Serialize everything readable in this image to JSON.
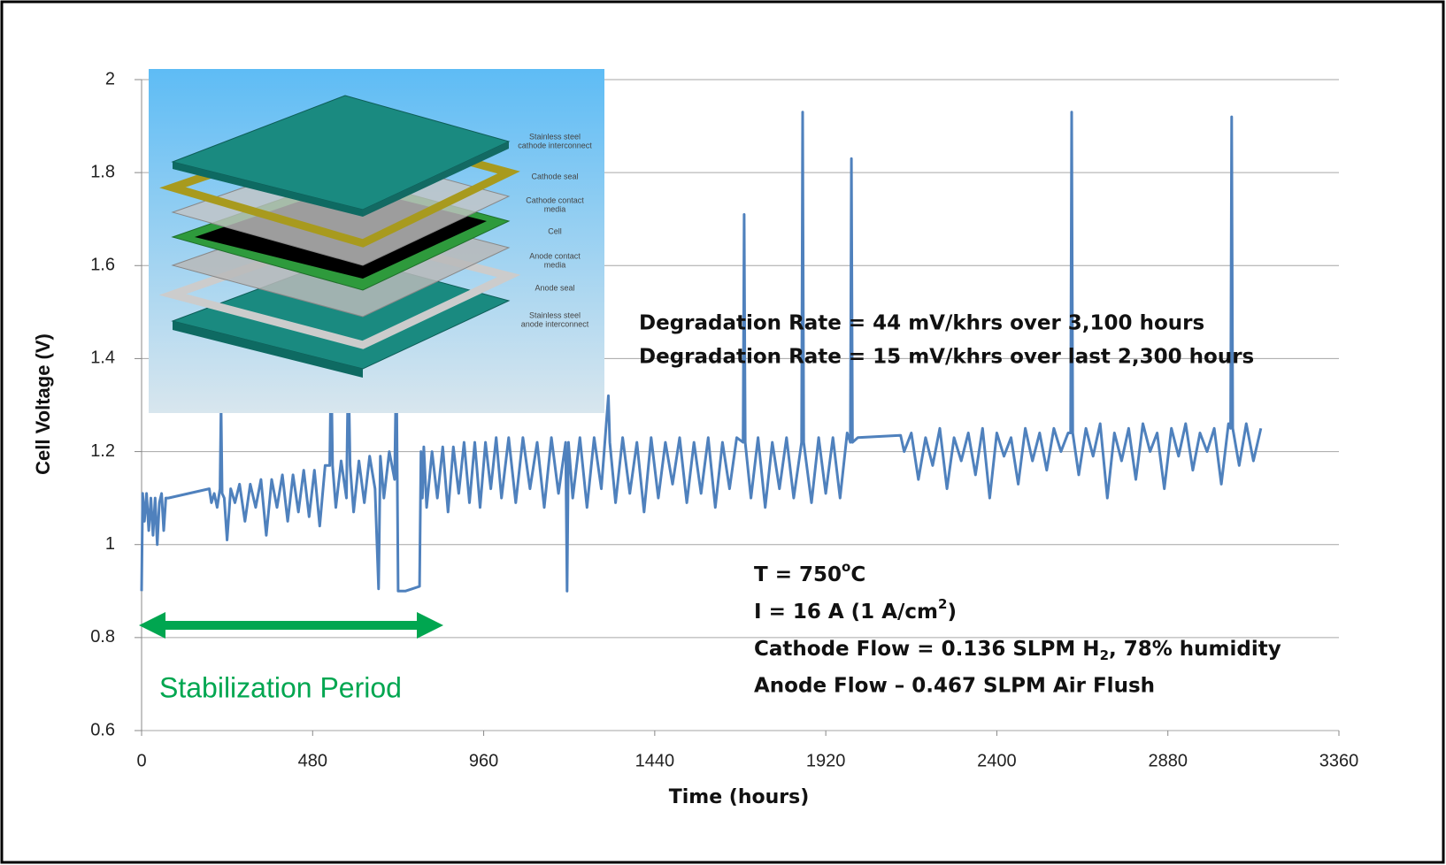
{
  "chart_data": {
    "type": "line",
    "x_label": "Time (hours)",
    "y_label": "Cell Voltage (V)",
    "xlim": [
      0,
      3360
    ],
    "xticks": [
      0,
      480,
      960,
      1440,
      1920,
      2400,
      2880,
      3360
    ],
    "ylim": [
      0.6,
      2
    ],
    "yticks": [
      0.6,
      0.8,
      1,
      1.2,
      1.4,
      1.6,
      1.8,
      2
    ],
    "grid": true,
    "series": [
      {
        "color": "#4f81bd",
        "x": [
          0,
          3,
          8,
          14,
          20,
          26,
          32,
          38,
          44,
          50,
          56,
          62,
          68,
          75,
          190,
          196,
          204,
          212,
          220,
          223,
          226,
          232,
          240,
          250,
          262,
          275,
          290,
          305,
          320,
          335,
          350,
          365,
          380,
          395,
          410,
          425,
          440,
          455,
          470,
          485,
          500,
          515,
          528,
          532,
          536,
          545,
          560,
          575,
          580,
          585,
          595,
          610,
          625,
          640,
          655,
          665,
          670,
          680,
          695,
          710,
          715,
          720,
          740,
          760,
          780,
          784,
          788,
          792,
          800,
          815,
          830,
          845,
          860,
          875,
          890,
          905,
          920,
          935,
          950,
          965,
          980,
          995,
          1010,
          1030,
          1050,
          1070,
          1090,
          1110,
          1130,
          1150,
          1170,
          1190,
          1194,
          1198,
          1210,
          1230,
          1250,
          1270,
          1290,
          1310,
          1314,
          1330,
          1350,
          1370,
          1390,
          1410,
          1430,
          1450,
          1470,
          1490,
          1510,
          1530,
          1550,
          1570,
          1590,
          1610,
          1630,
          1650,
          1670,
          1688,
          1691,
          1694,
          1710,
          1730,
          1750,
          1770,
          1790,
          1810,
          1830,
          1852,
          1855,
          1858,
          1880,
          1900,
          1920,
          1940,
          1960,
          1980,
          1989,
          1992,
          1995,
          2010,
          2130,
          2140,
          2160,
          2180,
          2200,
          2220,
          2240,
          2260,
          2280,
          2300,
          2320,
          2340,
          2360,
          2380,
          2400,
          2420,
          2440,
          2460,
          2480,
          2500,
          2520,
          2540,
          2560,
          2580,
          2600,
          2607,
          2610,
          2613,
          2630,
          2650,
          2670,
          2690,
          2710,
          2730,
          2750,
          2770,
          2790,
          2810,
          2830,
          2850,
          2870,
          2890,
          2910,
          2930,
          2950,
          2970,
          2990,
          3010,
          3030,
          3050,
          3056,
          3059,
          3062,
          3080,
          3100,
          3120,
          3141
        ],
        "values": [
          0.9,
          1.11,
          1.05,
          1.11,
          1.03,
          1.1,
          1.02,
          1.1,
          1.0,
          1.09,
          1.11,
          1.03,
          1.1,
          1.1,
          1.12,
          1.09,
          1.11,
          1.08,
          1.12,
          1.3,
          1.11,
          1.1,
          1.01,
          1.12,
          1.09,
          1.13,
          1.05,
          1.13,
          1.08,
          1.14,
          1.02,
          1.14,
          1.08,
          1.15,
          1.05,
          1.15,
          1.07,
          1.16,
          1.06,
          1.16,
          1.04,
          1.17,
          1.17,
          1.4,
          1.17,
          1.08,
          1.18,
          1.1,
          1.4,
          1.17,
          1.07,
          1.18,
          1.09,
          1.19,
          1.12,
          0.905,
          1.19,
          1.1,
          1.2,
          1.14,
          1.4,
          0.9,
          0.9,
          0.905,
          0.91,
          1.2,
          1.1,
          1.21,
          1.08,
          1.2,
          1.1,
          1.21,
          1.07,
          1.21,
          1.11,
          1.22,
          1.09,
          1.22,
          1.08,
          1.22,
          1.12,
          1.23,
          1.1,
          1.23,
          1.09,
          1.23,
          1.12,
          1.22,
          1.08,
          1.23,
          1.11,
          1.22,
          0.9,
          1.22,
          1.1,
          1.23,
          1.08,
          1.23,
          1.12,
          1.32,
          1.22,
          1.09,
          1.23,
          1.11,
          1.22,
          1.07,
          1.23,
          1.1,
          1.22,
          1.13,
          1.23,
          1.09,
          1.22,
          1.11,
          1.23,
          1.08,
          1.22,
          1.12,
          1.23,
          1.22,
          1.71,
          1.22,
          1.1,
          1.23,
          1.08,
          1.22,
          1.12,
          1.23,
          1.1,
          1.22,
          1.93,
          1.22,
          1.09,
          1.23,
          1.11,
          1.23,
          1.1,
          1.24,
          1.22,
          1.83,
          1.22,
          1.23,
          1.235,
          1.2,
          1.24,
          1.14,
          1.23,
          1.17,
          1.25,
          1.12,
          1.23,
          1.18,
          1.24,
          1.15,
          1.25,
          1.1,
          1.24,
          1.19,
          1.23,
          1.13,
          1.25,
          1.18,
          1.24,
          1.16,
          1.25,
          1.2,
          1.24,
          1.24,
          1.93,
          1.24,
          1.15,
          1.25,
          1.19,
          1.26,
          1.1,
          1.24,
          1.18,
          1.25,
          1.14,
          1.26,
          1.2,
          1.24,
          1.12,
          1.25,
          1.19,
          1.26,
          1.16,
          1.24,
          1.2,
          1.25,
          1.13,
          1.26,
          1.25,
          1.92,
          1.25,
          1.17,
          1.26,
          1.18,
          1.25
        ]
      }
    ],
    "annotations": {
      "degradation": [
        "Degradation Rate = 44 mV/khrs over 3,100 hours",
        "Degradation Rate = 15 mV/khrs over last 2,300 hours"
      ],
      "conditions": [
        [
          "T = 750",
          "o",
          "C"
        ],
        [
          "I = 16 A (1 A/cm",
          "2",
          ")"
        ],
        [
          "Cathode Flow = 0.136 SLPM H",
          "2",
          ", 78% humidity"
        ],
        [
          "Anode Flow – 0.467 SLPM Air Flush"
        ]
      ],
      "stabilization": "Stabilization Period",
      "inset_labels": [
        [
          "Stainless steel",
          "cathode interconnect"
        ],
        [
          "Cathode seal"
        ],
        [
          "Cathode contact",
          "media"
        ],
        [
          "Cell"
        ],
        [
          "Anode contact",
          "media"
        ],
        [
          "Anode seal"
        ],
        [
          "Stainless steel",
          "anode interconnect"
        ]
      ]
    }
  }
}
